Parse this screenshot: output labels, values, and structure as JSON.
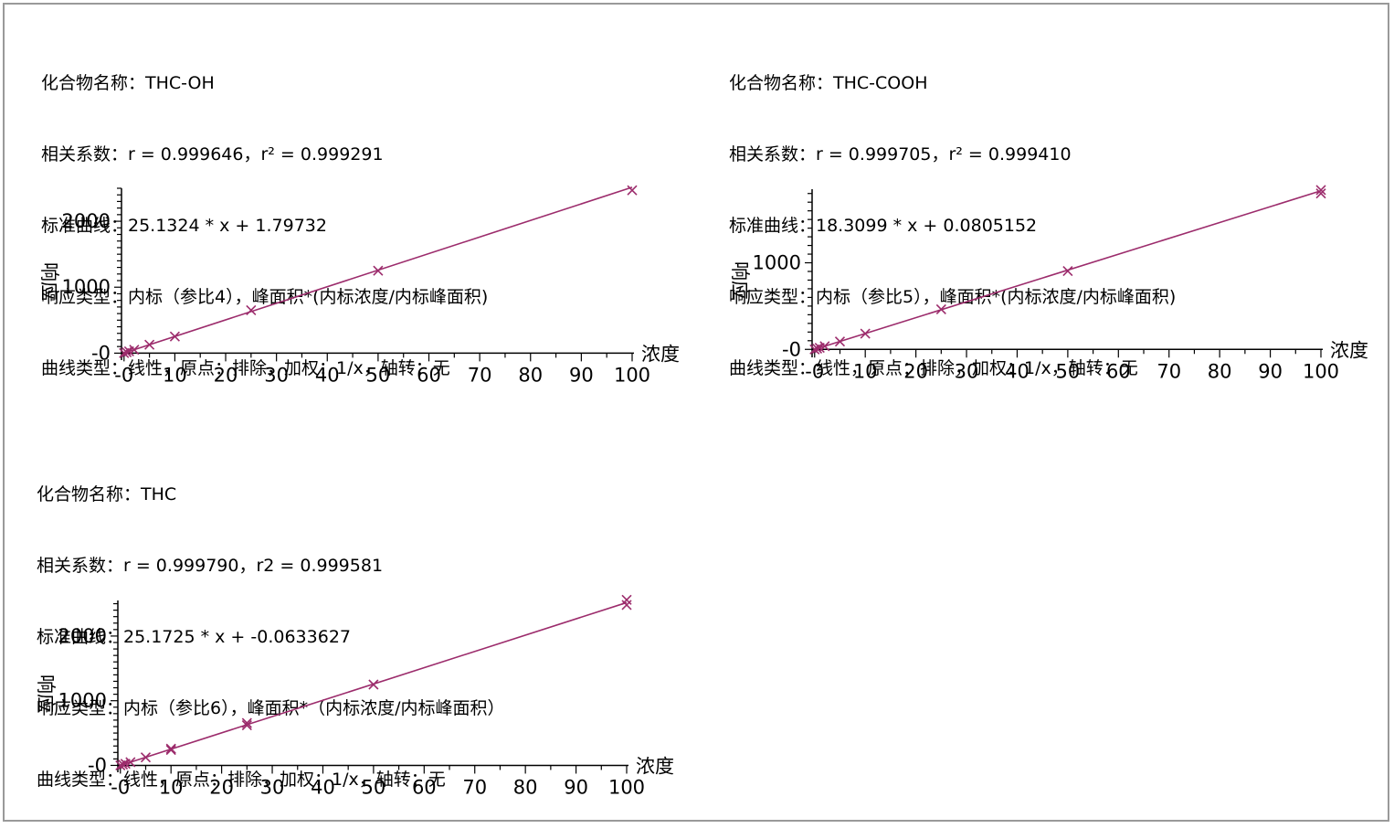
{
  "colors": {
    "series": "#9c2c6c",
    "axis": "#000000",
    "frame": "#9a9a9a"
  },
  "panels": [
    {
      "info": {
        "compound": "化合物名称：THC-OH",
        "correlation": "相关系数：r = 0.999646，r² = 0.999291",
        "equation": "标准曲线：25.1324 * x + 1.79732",
        "response": "响应类型：内标（参比4），峰面积*(内标浓度/内标峰面积)",
        "curve": "曲线类型：线性，原点：排除，加权：1/x，轴转：无"
      }
    },
    {
      "info": {
        "compound": "化合物名称：THC-COOH",
        "correlation": "相关系数：r = 0.999705，r² = 0.999410",
        "equation": "标准曲线：18.3099 * x + 0.0805152",
        "response": "响应类型：内标（参比5），峰面积*(内标浓度/内标峰面积)",
        "curve": "曲线类型：线性，原点：排除，加权：1/x，轴转：无"
      }
    },
    {
      "info": {
        "compound": "化合物名称：THC",
        "correlation": "相关系数：r = 0.999790，r2 = 0.999581",
        "equation": "标准曲线：25.1725 * x + -0.0633627",
        "response": "响应类型：内标（参比6），峰面积*（内标浓度/内标峰面积）",
        "curve": "曲线类型：线性，原点：排除，加权：1/x，轴转：无"
      }
    }
  ],
  "chart_data": [
    {
      "type": "scatter",
      "xlabel": "浓度",
      "ylabel": "响应",
      "xlim": [
        -0.5,
        100
      ],
      "ylim": [
        -50,
        2500
      ],
      "xticks": [
        0,
        10,
        20,
        30,
        40,
        50,
        60,
        70,
        80,
        90,
        100
      ],
      "xtick_labels": [
        "-0",
        "10",
        "20",
        "30",
        "40",
        "50",
        "60",
        "70",
        "80",
        "90",
        "100"
      ],
      "yticks": [
        0,
        1000,
        2000
      ],
      "ytick_labels": [
        "-0",
        "1000",
        "2000"
      ],
      "fit": {
        "slope": 25.1324,
        "intercept": 1.79732
      },
      "series": [
        {
          "x": [
            0,
            0.5,
            1,
            2,
            5,
            10,
            25,
            50,
            100
          ],
          "y": [
            1,
            14,
            27,
            52,
            128,
            253,
            650,
            1250,
            2470
          ]
        }
      ]
    },
    {
      "type": "scatter",
      "xlabel": "浓度",
      "ylabel": "响应",
      "xlim": [
        -0.5,
        100
      ],
      "ylim": [
        -50,
        1850
      ],
      "xticks": [
        0,
        10,
        20,
        30,
        40,
        50,
        60,
        70,
        80,
        90,
        100
      ],
      "xtick_labels": [
        "-0",
        "10",
        "20",
        "30",
        "40",
        "50",
        "60",
        "70",
        "80",
        "90",
        "100"
      ],
      "yticks": [
        0,
        1000
      ],
      "ytick_labels": [
        "-0",
        "1000"
      ],
      "fit": {
        "slope": 18.3099,
        "intercept": 0.0805152
      },
      "series": [
        {
          "x": [
            0,
            0.5,
            1,
            2,
            5,
            10,
            25,
            50,
            100,
            100
          ],
          "y": [
            0,
            9,
            18,
            37,
            91,
            182,
            463,
            905,
            1800,
            1840
          ]
        }
      ]
    },
    {
      "type": "scatter",
      "xlabel": "浓度",
      "ylabel": "响应",
      "xlim": [
        -0.5,
        100
      ],
      "ylim": [
        -50,
        2550
      ],
      "xticks": [
        0,
        10,
        20,
        30,
        40,
        50,
        60,
        70,
        80,
        90,
        100
      ],
      "xtick_labels": [
        "-0",
        "10",
        "20",
        "30",
        "40",
        "50",
        "60",
        "70",
        "80",
        "90",
        "100"
      ],
      "yticks": [
        0,
        1000,
        2000
      ],
      "ytick_labels": [
        "-0",
        "1000",
        "2000"
      ],
      "fit": {
        "slope": 25.1725,
        "intercept": -0.0633627
      },
      "series": [
        {
          "x": [
            0,
            0.5,
            1,
            2,
            5,
            10,
            10,
            25,
            25,
            50,
            100,
            100
          ],
          "y": [
            0,
            12,
            25,
            50,
            124,
            238,
            258,
            620,
            655,
            1250,
            2480,
            2560
          ]
        }
      ]
    }
  ]
}
